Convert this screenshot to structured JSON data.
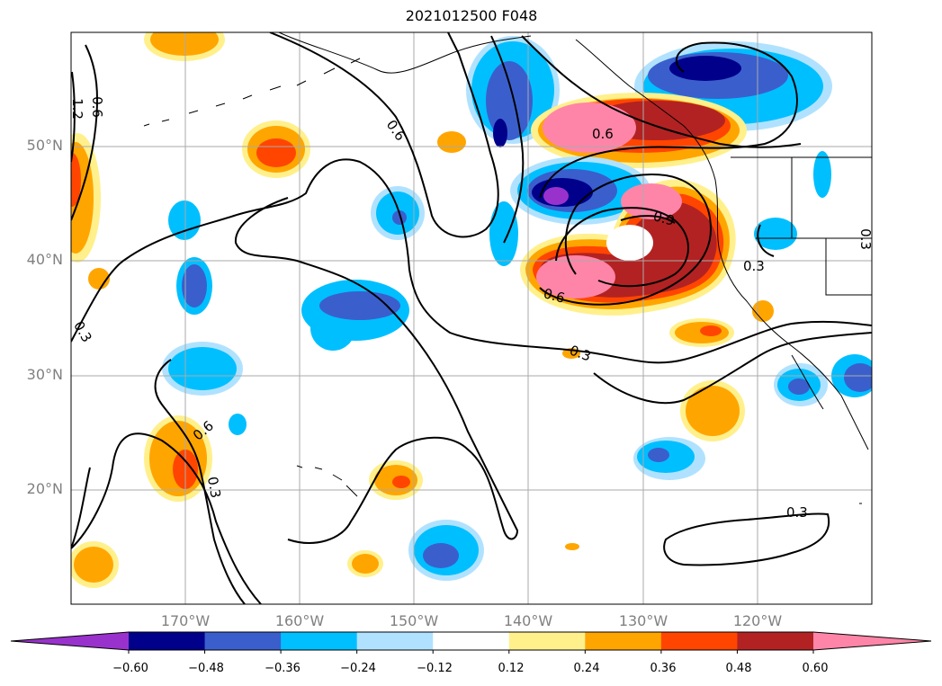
{
  "title": "2021012500 F048",
  "latitude_labels": [
    "50°N",
    "40°N",
    "30°N",
    "20°N"
  ],
  "longitude_labels": [
    "170°W",
    "160°W",
    "150°W",
    "140°W",
    "130°W",
    "120°W"
  ],
  "contour_labels": [
    "0.3",
    "0.6",
    "0.9",
    "1.2"
  ],
  "colorbar": {
    "tick_labels": [
      "−0.60",
      "−0.48",
      "−0.36",
      "−0.24",
      "−0.12",
      "0.12",
      "0.24",
      "0.36",
      "0.48",
      "0.60"
    ],
    "colors": [
      "#9932cc",
      "#00008b",
      "#3a5fcd",
      "#00bfff",
      "#b0e2ff",
      "#ffffff",
      "#fff08c",
      "#ffa500",
      "#ff4500",
      "#b22222",
      "#ff85a8"
    ]
  },
  "map_extent": {
    "lon_min": -180,
    "lon_max": -110,
    "lat_min": 10,
    "lat_max": 60
  }
}
